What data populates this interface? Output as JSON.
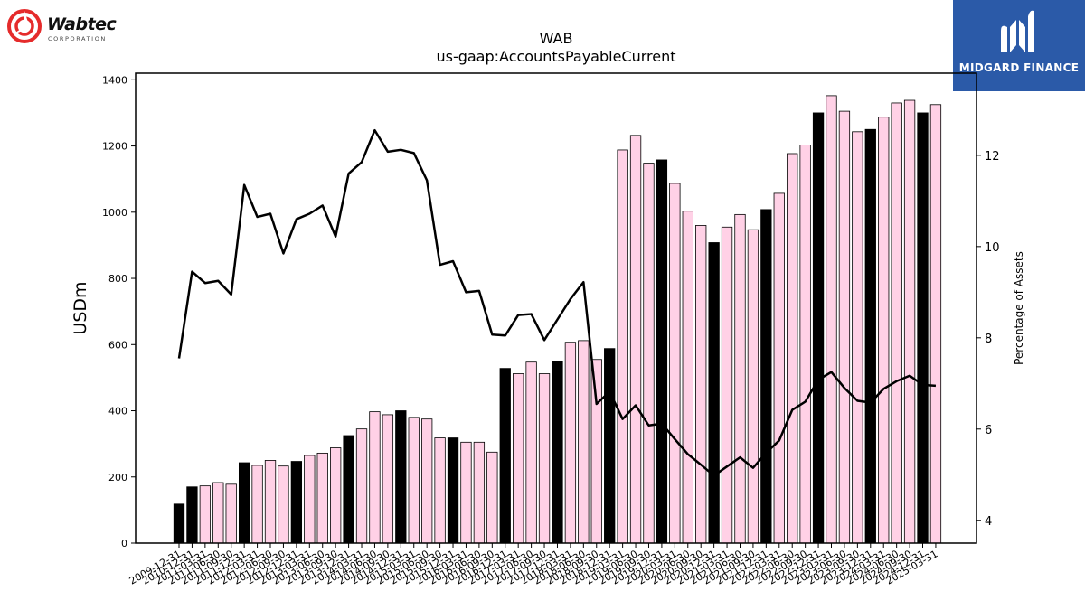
{
  "logos": {
    "left_name": "Wabtec",
    "left_sub": "CORPORATION",
    "right_name": "MIDGARD FINANCE",
    "left_icon": "wabtec-swirl-icon",
    "right_icon": "midgard-m-icon"
  },
  "colors": {
    "highlight": "#000000",
    "regular": "#ffd1e6",
    "line": "#000000"
  },
  "chart_data": {
    "type": "bar",
    "title": "WAB",
    "subtitle": "us-gaap:AccountsPayableCurrent",
    "ylabel": "USDm",
    "y2label": "Percentage of Assets",
    "ylim": [
      0,
      1420
    ],
    "y2lim": [
      3.5,
      13.8
    ],
    "yticks": [
      0,
      200,
      400,
      600,
      800,
      1000,
      1200,
      1400
    ],
    "y2ticks": [
      4,
      6,
      8,
      10,
      12
    ],
    "grid": false,
    "categories": [
      "2009-12-31",
      "2010-12-31",
      "2011-03-31",
      "2011-06-30",
      "2011-09-30",
      "2011-12-31",
      "2012-03-31",
      "2012-06-30",
      "2012-09-30",
      "2012-12-31",
      "2013-03-31",
      "2013-06-30",
      "2013-09-30",
      "2013-12-31",
      "2014-03-31",
      "2014-06-30",
      "2014-09-30",
      "2014-12-31",
      "2015-03-31",
      "2015-06-30",
      "2015-09-30",
      "2015-12-31",
      "2016-03-31",
      "2016-06-30",
      "2016-09-30",
      "2016-12-31",
      "2017-03-31",
      "2017-06-30",
      "2017-09-30",
      "2017-12-31",
      "2018-03-31",
      "2018-06-30",
      "2018-09-30",
      "2018-12-31",
      "2019-03-31",
      "2019-06-30",
      "2019-09-30",
      "2019-12-31",
      "2020-03-31",
      "2020-06-30",
      "2020-09-30",
      "2020-12-31",
      "2021-03-31",
      "2021-06-30",
      "2021-09-30",
      "2021-12-31",
      "2022-03-31",
      "2022-06-30",
      "2022-09-30",
      "2022-12-31",
      "2023-03-31",
      "2023-06-30",
      "2023-09-30",
      "2023-12-31",
      "2024-03-31",
      "2024-06-30",
      "2024-09-30",
      "2024-12-31",
      "2025-03-31"
    ],
    "values": [
      118,
      170,
      173,
      183,
      178,
      243,
      235,
      250,
      233,
      247,
      265,
      272,
      288,
      325,
      345,
      397,
      388,
      400,
      380,
      375,
      318,
      318,
      305,
      305,
      275,
      528,
      512,
      547,
      512,
      550,
      607,
      612,
      555,
      588,
      1188,
      1232,
      1148,
      1158,
      1087,
      1003,
      960,
      908,
      955,
      993,
      947,
      1008,
      1057,
      1177,
      1203,
      1300,
      1352,
      1305,
      1243,
      1250,
      1287,
      1330,
      1338,
      1300,
      1325
    ],
    "highlighted": [
      true,
      true,
      false,
      false,
      false,
      true,
      false,
      false,
      false,
      true,
      false,
      false,
      false,
      true,
      false,
      false,
      false,
      true,
      false,
      false,
      false,
      true,
      false,
      false,
      false,
      true,
      false,
      false,
      false,
      true,
      false,
      false,
      false,
      true,
      false,
      false,
      false,
      true,
      false,
      false,
      false,
      true,
      false,
      false,
      false,
      true,
      false,
      false,
      false,
      true,
      false,
      false,
      false,
      true,
      false,
      false,
      false,
      true,
      false
    ],
    "line_series": {
      "axis": "right",
      "values": [
        7.55,
        9.45,
        9.2,
        9.25,
        8.95,
        11.35,
        10.65,
        10.72,
        9.85,
        10.6,
        10.72,
        10.9,
        10.22,
        11.6,
        11.85,
        12.55,
        12.08,
        12.12,
        12.05,
        11.45,
        9.6,
        9.68,
        9.0,
        9.03,
        8.07,
        8.05,
        8.5,
        8.52,
        7.95,
        8.4,
        8.85,
        9.22,
        6.55,
        6.82,
        6.22,
        6.52,
        6.08,
        6.12,
        5.78,
        5.45,
        5.22,
        4.98,
        5.18,
        5.38,
        5.15,
        5.48,
        5.75,
        6.42,
        6.6,
        7.08,
        7.25,
        6.9,
        6.62,
        6.58,
        6.88,
        7.05,
        7.17,
        6.97,
        6.95
      ]
    },
    "xtick_labels": [
      "2009-12-31",
      "2010-12-31",
      "2011-03-31",
      "2011-06-30",
      "2011-09-30",
      "2011-12-31",
      "2012-03-31",
      "2012-06-30",
      "2012-09-30",
      "2012-12-31",
      "2013-03-31",
      "2013-06-30",
      "2013-09-30",
      "2013-12-31",
      "2014-03-31",
      "2014-06-30",
      "2014-09-30",
      "2014-12-31",
      "2015-03-31",
      "2015-06-30",
      "2015-09-30",
      "2015-12-31",
      "2016-03-31",
      "2016-06-30",
      "2016-09-30",
      "2016-12-31",
      "2017-03-31",
      "2017-06-30",
      "2017-09-30",
      "2017-12-31",
      "2018-03-31",
      "2018-06-30",
      "2018-09-30",
      "2018-12-31",
      "2019-03-31",
      "2019-06-30",
      "2019-09-30",
      "2019-12-31",
      "2020-03-31",
      "2020-06-30",
      "2020-09-30",
      "2020-12-31",
      "2021-03-31",
      "2021-06-30",
      "2021-09-30",
      "2021-12-31",
      "2022-03-31",
      "2022-06-30",
      "2022-09-30",
      "2022-12-31",
      "2023-03-31",
      "2023-06-30",
      "2023-09-30",
      "2023-12-31",
      "2024-03-31",
      "2024-06-30",
      "2024-09-30",
      "2024-12-31",
      "2025-03-31"
    ]
  }
}
